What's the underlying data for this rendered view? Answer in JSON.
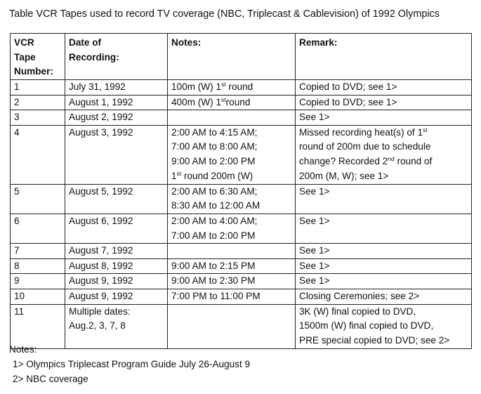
{
  "title": "Table VCR Tapes used to record TV coverage (NBC, Triplecast & Cablevision) of 1992 Olympics",
  "table": {
    "headers": {
      "tape": [
        "VCR",
        "Tape",
        "Number:"
      ],
      "date": [
        "Date of",
        "Recording:"
      ],
      "notes": "Notes:",
      "remark": "Remark:"
    },
    "rows": [
      {
        "tape": "1",
        "date": [
          "July 31, 1992"
        ],
        "notes": [
          {
            "text": "100m (W) 1",
            "sup": "st",
            "after": " round"
          }
        ],
        "remark": [
          {
            "text": "Copied to DVD; see 1>"
          }
        ]
      },
      {
        "tape": "2",
        "date": [
          "August 1, 1992"
        ],
        "notes": [
          {
            "text": "400m (W) 1",
            "sup": "st",
            "after": "round"
          }
        ],
        "remark": [
          {
            "text": "Copied to DVD; see 1>"
          }
        ]
      },
      {
        "tape": "3",
        "date": [
          "August 2, 1992"
        ],
        "notes": [],
        "remark": [
          {
            "text": "See 1>"
          }
        ]
      },
      {
        "tape": "4",
        "date": [
          "August 3, 1992"
        ],
        "notes": [
          {
            "text": "2:00 AM to 4:15 AM;"
          },
          {
            "text": "7:00 AM to 8:00 AM;"
          },
          {
            "text": "9:00 AM to 2:00 PM"
          },
          {
            "text": "1",
            "sup": "st",
            "after": " round 200m (W)"
          }
        ],
        "remark": [
          {
            "text": "Missed recording heat(s) of 1",
            "sup": "st",
            "after": ""
          },
          {
            "text": "round of 200m due to schedule"
          },
          {
            "text": "change? Recorded 2",
            "sup": "nd",
            "after": " round of"
          },
          {
            "text": "200m (M, W); see 1>"
          }
        ]
      },
      {
        "tape": "5",
        "date": [
          "August 5, 1992"
        ],
        "notes": [
          {
            "text": "2:00 AM to 6:30 AM;"
          },
          {
            "text": "8:30 AM to 12:00 AM"
          }
        ],
        "remark": [
          {
            "text": "See 1>"
          }
        ]
      },
      {
        "tape": "6",
        "date": [
          "August 6, 1992"
        ],
        "notes": [
          {
            "text": "2:00 AM to 4:00 AM;"
          },
          {
            "text": "7:00 AM to 2:00 PM"
          }
        ],
        "remark": [
          {
            "text": "See 1>"
          }
        ]
      },
      {
        "tape": "7",
        "date": [
          "August 7, 1992"
        ],
        "notes": [],
        "remark": [
          {
            "text": "See 1>"
          }
        ]
      },
      {
        "tape": "8",
        "date": [
          "August 8, 1992"
        ],
        "notes": [
          {
            "text": "9:00 AM to 2:15 PM"
          }
        ],
        "remark": [
          {
            "text": "See 1>"
          }
        ]
      },
      {
        "tape": "9",
        "date": [
          "August 9, 1992"
        ],
        "notes": [
          {
            "text": "9:00 AM to 2:30 PM"
          }
        ],
        "remark": [
          {
            "text": "See 1>"
          }
        ]
      },
      {
        "tape": "10",
        "date": [
          "August 9, 1992"
        ],
        "notes": [
          {
            "text": "7:00 PM to 11:00 PM"
          }
        ],
        "remark": [
          {
            "text": "Closing Ceremonies; see 2>"
          }
        ]
      },
      {
        "tape": "11",
        "date": [
          "Multiple dates:",
          "Aug.2, 3, 7, 8"
        ],
        "notes": [],
        "remark": [
          {
            "text": "3K (W) final copied to DVD,"
          },
          {
            "text": "1500m (W) final copied to DVD,"
          },
          {
            "text": "PRE special copied to DVD; see 2>"
          }
        ]
      }
    ]
  },
  "notes": {
    "heading": "Notes:",
    "items": [
      "1> Olympics Triplecast Program Guide July 26-August 9",
      "2> NBC coverage"
    ]
  }
}
